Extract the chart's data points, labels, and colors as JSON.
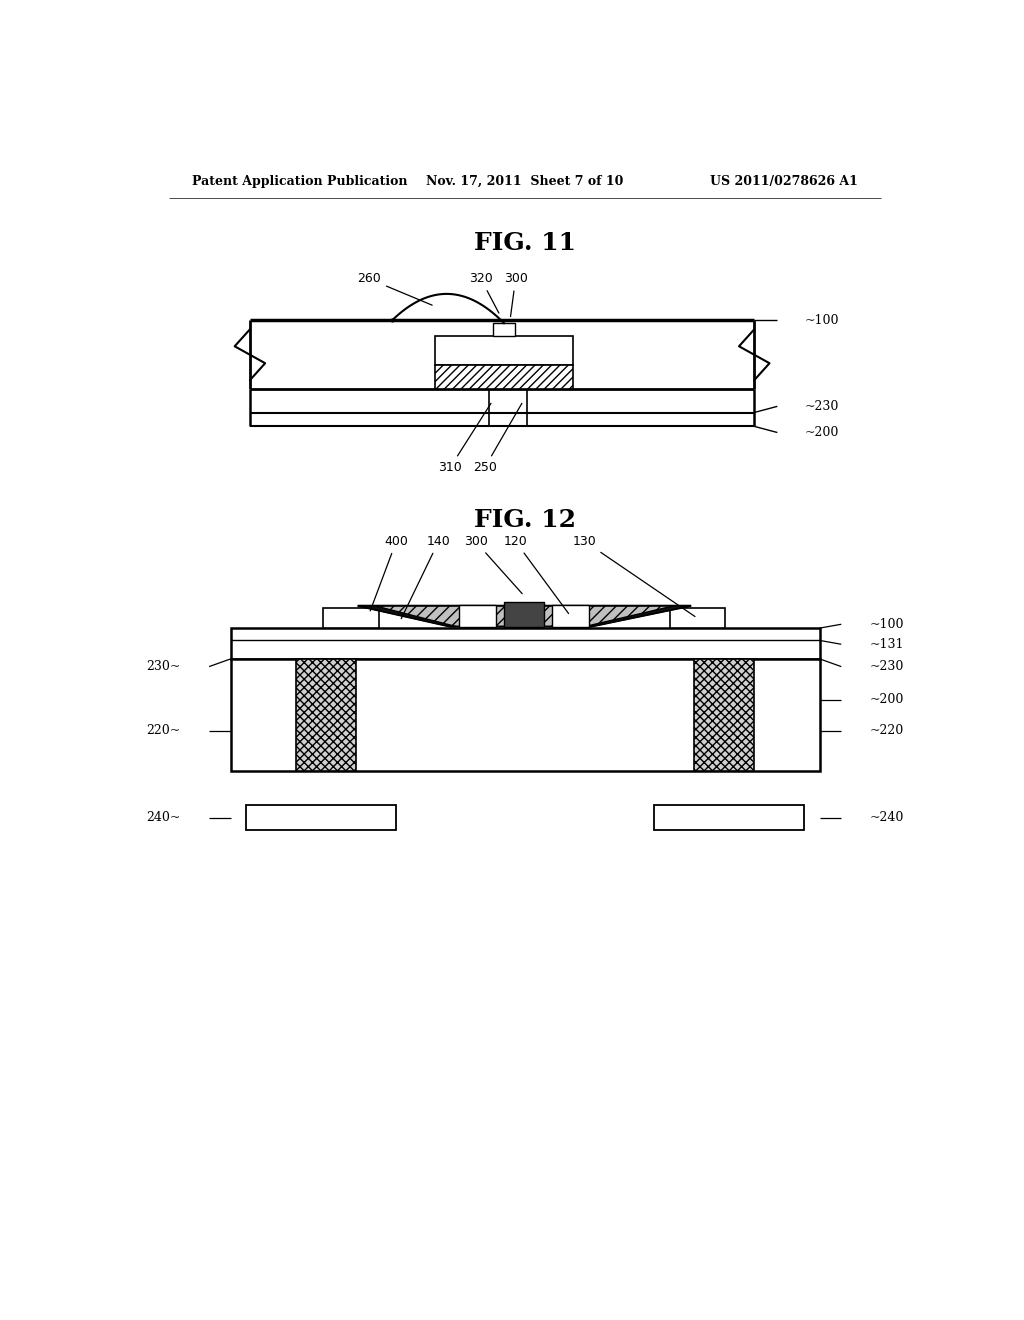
{
  "header_left": "Patent Application Publication",
  "header_center": "Nov. 17, 2011  Sheet 7 of 10",
  "header_right": "US 2011/0278626 A1",
  "fig11_title": "FIG. 11",
  "fig12_title": "FIG. 12",
  "bg_color": "#ffffff",
  "line_color": "#000000"
}
